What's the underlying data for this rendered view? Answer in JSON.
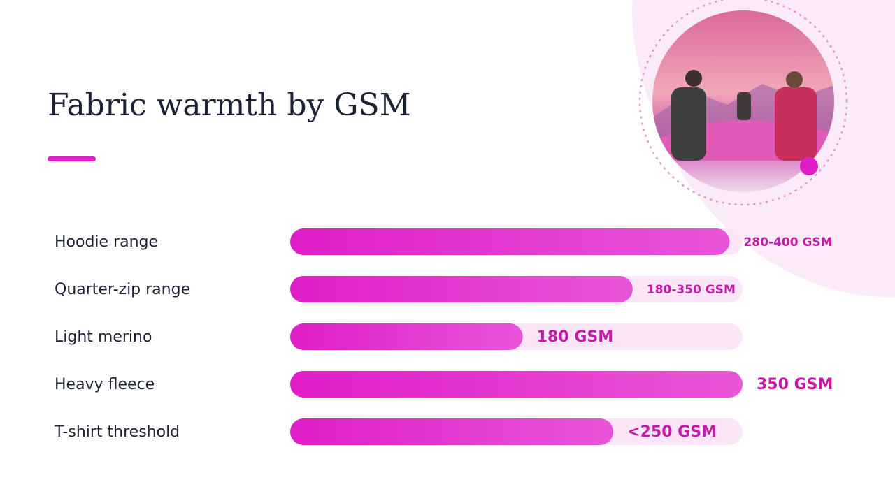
{
  "chart_data": {
    "type": "bar",
    "orientation": "horizontal",
    "title": "Fabric warmth by GSM",
    "categories": [
      "Hoodie range",
      "Quarter-zip range",
      "Light merino",
      "Heavy fleece",
      "T-shirt threshold"
    ],
    "values": [
      340,
      265,
      180,
      350,
      250
    ],
    "value_labels": [
      "280-400 GSM",
      "180-350 GSM",
      "180 GSM",
      "350 GSM",
      "<250 GSM"
    ],
    "xlim": [
      0,
      350
    ],
    "color": "#e01ec8",
    "track_color": "#fbe6f7"
  }
}
